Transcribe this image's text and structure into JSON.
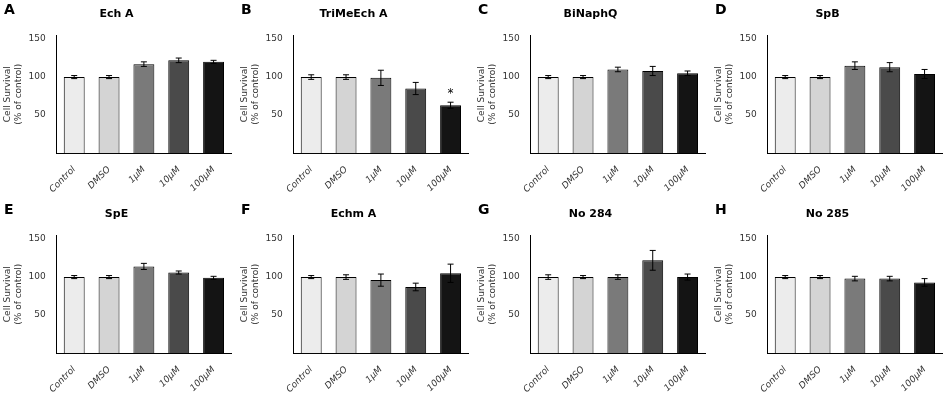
{
  "chart_data": [
    {
      "type": "bar",
      "panel_label": "A",
      "title": "Ech A",
      "categories": [
        "Control",
        "DMSO",
        "1μM",
        "10μM",
        "100μM"
      ],
      "values": [
        100,
        100,
        117,
        122,
        120
      ],
      "errors": [
        2,
        2,
        3,
        3,
        2
      ],
      "colors": [
        "#ececec",
        "#d4d4d4",
        "#7a7a7a",
        "#4a4a4a",
        "#141414"
      ],
      "ylabel": "Cell Survival\n(% of control)",
      "ylim": [
        0,
        155
      ],
      "yticks": [
        50,
        100,
        150
      ],
      "grid": false
    },
    {
      "type": "bar",
      "panel_label": "B",
      "title": "TriMeEch A",
      "categories": [
        "Control",
        "DMSO",
        "1μM",
        "10μM",
        "100μM"
      ],
      "values": [
        100,
        100,
        99,
        85,
        63
      ],
      "errors": [
        3,
        3,
        10,
        8,
        4
      ],
      "colors": [
        "#ececec",
        "#d4d4d4",
        "#7a7a7a",
        "#4a4a4a",
        "#141414"
      ],
      "annotations": [
        {
          "category": "100μM",
          "text": "*",
          "color": "#000000"
        }
      ],
      "ylabel": "Cell Survival\n(% of control)",
      "ylim": [
        0,
        155
      ],
      "yticks": [
        50,
        100,
        150
      ],
      "grid": false
    },
    {
      "type": "bar",
      "panel_label": "C",
      "title": "BiNaphQ",
      "categories": [
        "Control",
        "DMSO",
        "1μM",
        "10μM",
        "100μM"
      ],
      "values": [
        100,
        100,
        110,
        108,
        105
      ],
      "errors": [
        2,
        2,
        3,
        6,
        3
      ],
      "colors": [
        "#ececec",
        "#d4d4d4",
        "#7a7a7a",
        "#4a4a4a",
        "#141414"
      ],
      "ylabel": "Cell Survival\n(% of control)",
      "ylim": [
        0,
        155
      ],
      "yticks": [
        50,
        100,
        150
      ],
      "grid": false
    },
    {
      "type": "bar",
      "panel_label": "D",
      "title": "SpB",
      "categories": [
        "Control",
        "DMSO",
        "1μM",
        "10μM",
        "100μM"
      ],
      "values": [
        100,
        100,
        115,
        113,
        104
      ],
      "errors": [
        2,
        2,
        5,
        6,
        6
      ],
      "colors": [
        "#ececec",
        "#d4d4d4",
        "#7a7a7a",
        "#4a4a4a",
        "#141414"
      ],
      "ylabel": "Cell Survival\n(% of control)",
      "ylim": [
        0,
        155
      ],
      "yticks": [
        50,
        100,
        150
      ],
      "grid": false
    },
    {
      "type": "bar",
      "panel_label": "E",
      "title": "SpE",
      "categories": [
        "Control",
        "DMSO",
        "1μM",
        "10μM",
        "100μM"
      ],
      "values": [
        100,
        100,
        114,
        106,
        99
      ],
      "errors": [
        2,
        2,
        4,
        2,
        2
      ],
      "colors": [
        "#ececec",
        "#d4d4d4",
        "#7a7a7a",
        "#4a4a4a",
        "#141414"
      ],
      "ylabel": "Cell Survival\n(% of control)",
      "ylim": [
        0,
        155
      ],
      "yticks": [
        50,
        100,
        150
      ],
      "grid": false
    },
    {
      "type": "bar",
      "panel_label": "F",
      "title": "Echm A",
      "categories": [
        "Control",
        "DMSO",
        "1μM",
        "10μM",
        "100μM"
      ],
      "values": [
        100,
        100,
        96,
        87,
        105
      ],
      "errors": [
        2,
        3,
        8,
        5,
        12
      ],
      "colors": [
        "#ececec",
        "#d4d4d4",
        "#7a7a7a",
        "#4a4a4a",
        "#141414"
      ],
      "ylabel": "Cell Survival\n(% of control)",
      "ylim": [
        0,
        155
      ],
      "yticks": [
        50,
        100,
        150
      ],
      "grid": false
    },
    {
      "type": "bar",
      "panel_label": "G",
      "title": "No 284",
      "categories": [
        "Control",
        "DMSO",
        "1μM",
        "10μM",
        "100μM"
      ],
      "values": [
        100,
        100,
        100,
        122,
        100
      ],
      "errors": [
        3,
        2,
        3,
        13,
        4
      ],
      "colors": [
        "#ececec",
        "#d4d4d4",
        "#7a7a7a",
        "#4a4a4a",
        "#141414"
      ],
      "ylabel": "Cell Survival\n(% of control)",
      "ylim": [
        0,
        155
      ],
      "yticks": [
        50,
        100,
        150
      ],
      "grid": false
    },
    {
      "type": "bar",
      "panel_label": "H",
      "title": "No 285",
      "categories": [
        "Control",
        "DMSO",
        "1μM",
        "10μM",
        "100μM"
      ],
      "values": [
        100,
        100,
        98,
        98,
        93
      ],
      "errors": [
        2,
        2,
        3,
        3,
        5
      ],
      "colors": [
        "#ececec",
        "#d4d4d4",
        "#7a7a7a",
        "#4a4a4a",
        "#141414"
      ],
      "ylabel": "Cell Survival\n(% of control)",
      "ylim": [
        0,
        155
      ],
      "yticks": [
        50,
        100,
        150
      ],
      "grid": false
    }
  ]
}
